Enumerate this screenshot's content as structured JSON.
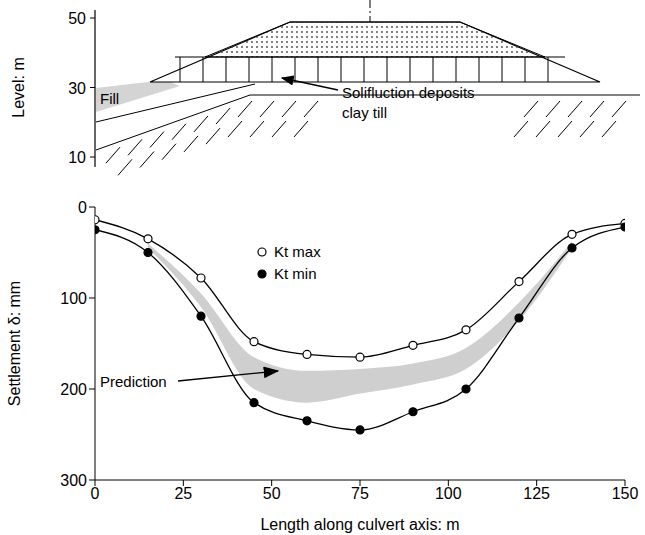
{
  "chart_data": [
    {
      "type": "diagram",
      "ylabel": "Level: m",
      "ylim": [
        10,
        50
      ],
      "yticks": [
        10,
        30,
        50
      ],
      "labels": [
        "Fill",
        "Solifluction deposits",
        "clay till"
      ]
    },
    {
      "type": "line",
      "xlabel": "Length along culvert axis: m",
      "ylabel": "Settlement δ: mm",
      "x": [
        0,
        15,
        30,
        45,
        60,
        75,
        90,
        105,
        120,
        135,
        150
      ],
      "xlim": [
        0,
        150
      ],
      "xticks": [
        0,
        25,
        50,
        75,
        100,
        125,
        150
      ],
      "ylim": [
        0,
        300
      ],
      "yticks": [
        0,
        100,
        200,
        300
      ],
      "series": [
        {
          "name": "Kt max",
          "color": "#000000",
          "marker": "open circle",
          "line_style": "solid",
          "values": [
            14,
            35,
            78,
            148,
            162,
            165,
            152,
            135,
            82,
            30,
            18
          ]
        },
        {
          "name": "Kt min",
          "color": "#000000",
          "marker": "filled circle",
          "line_style": "solid",
          "values": [
            25,
            50,
            120,
            215,
            235,
            245,
            225,
            200,
            122,
            45,
            22
          ]
        },
        {
          "name": "Prediction",
          "type": "band",
          "color": "#cfcfcf",
          "values": [
            null,
            [
              40,
              45
            ],
            [
              95,
              110
            ],
            [
              165,
              200
            ],
            [
              180,
              215
            ],
            [
              178,
              205
            ],
            [
              172,
              195
            ],
            [
              155,
              178
            ],
            [
              105,
              125
            ],
            [
              38,
              45
            ],
            null
          ]
        }
      ]
    }
  ]
}
